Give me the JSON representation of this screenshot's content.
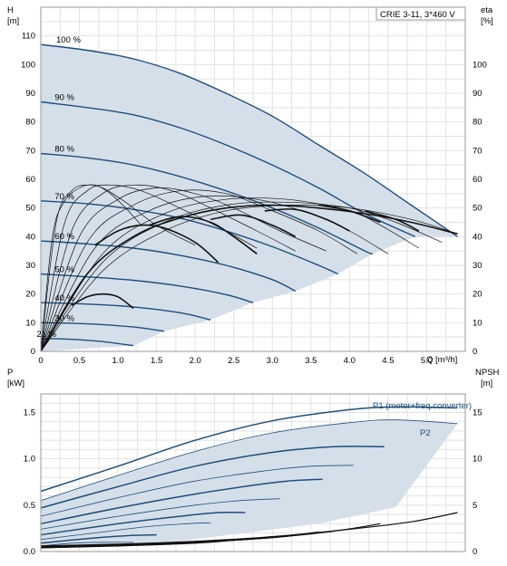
{
  "chart_data": [
    {
      "type": "line",
      "title": "CRIE 3-11, 3*460 V",
      "xlabel": "Q [m³/h]",
      "ylabel_left_symbol": "H",
      "ylabel_left_unit": "[m]",
      "ylabel_right_symbol": "eta",
      "ylabel_right_unit": "[%]",
      "xlim": [
        0,
        5.5
      ],
      "ylim": [
        0,
        120
      ],
      "ylim_right": [
        0,
        120
      ],
      "grid": true,
      "x_ticks": [
        "0",
        "0.5",
        "1.0",
        "1.5",
        "2.0",
        "2.5",
        "3.0",
        "3.5",
        "4.0",
        "4.5",
        "5.0"
      ],
      "y_ticks": [
        "0",
        "10",
        "20",
        "30",
        "40",
        "50",
        "60",
        "70",
        "80",
        "90",
        "100",
        "110"
      ],
      "y_ticks_right": [
        "0",
        "10",
        "20",
        "30",
        "40",
        "50",
        "60",
        "70",
        "80",
        "90",
        "100"
      ],
      "operating_range_color": "#d5dfea",
      "curve_color": "#1f4e79",
      "eta_color": "#111111",
      "head_curves": [
        {
          "label": "100 %",
          "x": [
            0,
            0.6,
            1.2,
            1.8,
            2.4,
            3.0,
            3.6,
            4.2,
            4.8,
            5.4
          ],
          "y": [
            107,
            105,
            102,
            97,
            90,
            82,
            72,
            62,
            51,
            40
          ]
        },
        {
          "label": "90 %",
          "x": [
            0,
            0.6,
            1.2,
            1.8,
            2.4,
            3.0,
            3.6,
            4.2,
            4.85
          ],
          "y": [
            87,
            85,
            82.5,
            78,
            72,
            65,
            57,
            48,
            40
          ]
        },
        {
          "label": "80 %",
          "x": [
            0,
            0.6,
            1.2,
            1.8,
            2.4,
            3.0,
            3.6,
            4.2,
            4.3
          ],
          "y": [
            69,
            67.5,
            65,
            61,
            56,
            50,
            43,
            35,
            34
          ]
        },
        {
          "label": "70 %",
          "x": [
            0,
            0.6,
            1.2,
            1.8,
            2.4,
            3.0,
            3.6,
            3.85
          ],
          "y": [
            52.5,
            51.5,
            49.5,
            46.5,
            42,
            36.5,
            30,
            27
          ]
        },
        {
          "label": "60 %",
          "x": [
            0,
            0.6,
            1.2,
            1.8,
            2.4,
            3.0,
            3.3
          ],
          "y": [
            38.5,
            37.5,
            36,
            33.5,
            30,
            25,
            21
          ]
        },
        {
          "label": "50 %",
          "x": [
            0,
            0.6,
            1.2,
            1.8,
            2.4,
            2.75
          ],
          "y": [
            27,
            26,
            24.8,
            22.8,
            19.8,
            17
          ]
        },
        {
          "label": "40 %",
          "x": [
            0,
            0.6,
            1.2,
            1.8,
            2.2
          ],
          "y": [
            17,
            16.5,
            15.5,
            13.5,
            11
          ]
        },
        {
          "label": "30 %",
          "x": [
            0,
            0.6,
            1.2,
            1.6
          ],
          "y": [
            10,
            9.6,
            8.5,
            7
          ]
        },
        {
          "label": "21 %",
          "x": [
            0,
            0.4,
            0.8,
            1.2
          ],
          "y": [
            4.5,
            4.2,
            3.4,
            2
          ]
        }
      ],
      "eta_curves": [
        {
          "x": [
            0,
            0.8,
            1.6,
            2.4,
            3.2,
            4.0,
            4.8,
            5.4
          ],
          "y": [
            0,
            28,
            42,
            49,
            51,
            50,
            46,
            41
          ]
        },
        {
          "x": [
            0,
            0.8,
            1.6,
            2.4,
            3.2,
            4.0,
            4.6,
            5.2
          ],
          "y": [
            0,
            31,
            45,
            51,
            52,
            50,
            45,
            38
          ]
        },
        {
          "x": [
            0,
            0.8,
            1.6,
            2.4,
            3.2,
            4.0,
            4.4,
            4.9
          ],
          "y": [
            0,
            34,
            48,
            53,
            53,
            49,
            44,
            36
          ]
        },
        {
          "x": [
            0,
            0.7,
            1.4,
            2.1,
            2.8,
            3.5,
            4.0,
            4.5
          ],
          "y": [
            0,
            36,
            49,
            54,
            53,
            48,
            42,
            34
          ]
        },
        {
          "x": [
            0,
            0.6,
            1.2,
            1.8,
            2.4,
            3.0,
            3.6,
            4.1
          ],
          "y": [
            0,
            38,
            51,
            56,
            55,
            49,
            42,
            34
          ]
        },
        {
          "x": [
            0,
            0.5,
            1.0,
            1.5,
            2.0,
            2.5,
            3.1,
            3.7
          ],
          "y": [
            0,
            40,
            53,
            57,
            55,
            50,
            42,
            35
          ]
        },
        {
          "x": [
            0,
            0.4,
            0.8,
            1.2,
            1.7,
            2.2,
            2.8,
            3.3
          ],
          "y": [
            0,
            42,
            55,
            58,
            56,
            50,
            42,
            35
          ]
        },
        {
          "x": [
            0,
            0.3,
            0.6,
            0.9,
            1.3,
            1.8,
            2.4,
            2.8
          ],
          "y": [
            0,
            44,
            56,
            58,
            56,
            50,
            42,
            36
          ]
        },
        {
          "x": [
            0,
            0.2,
            0.4,
            0.6,
            0.8,
            1.1,
            1.5,
            2.0
          ],
          "y": [
            0,
            45,
            56,
            58,
            57,
            52,
            44,
            37
          ]
        },
        {
          "x": [
            0,
            0.15,
            0.3,
            0.5,
            0.7,
            0.9,
            1.1,
            1.3
          ],
          "y": [
            0,
            40,
            52,
            57,
            58,
            55,
            50,
            44
          ]
        }
      ],
      "eta_bold_curves": [
        {
          "x": [
            0,
            0.6,
            1.2,
            1.8,
            2.4,
            3.0,
            3.6,
            4.2,
            4.8,
            5.4
          ],
          "y": [
            0,
            27,
            40,
            46.5,
            50,
            51,
            50,
            48,
            45,
            41
          ]
        },
        {
          "x": [
            0.7,
            1.0,
            1.3,
            1.6,
            2.0,
            2.3
          ],
          "y": [
            37,
            42,
            44,
            43,
            38,
            31
          ]
        },
        {
          "x": [
            1.4,
            1.8,
            2.2,
            2.5,
            2.8
          ],
          "y": [
            44,
            47,
            45,
            40,
            34
          ]
        },
        {
          "x": [
            2.2,
            2.6,
            3.0,
            3.3
          ],
          "y": [
            46,
            47.5,
            44,
            40
          ]
        },
        {
          "x": [
            2.9,
            3.3,
            3.7,
            4.0
          ],
          "y": [
            49,
            49.5,
            46,
            42
          ]
        },
        {
          "x": [
            3.6,
            4.0,
            4.4
          ],
          "y": [
            51,
            49,
            45
          ]
        },
        {
          "x": [
            4.2,
            4.6,
            4.9
          ],
          "y": [
            49,
            46,
            42
          ]
        },
        {
          "x": [
            0.4,
            0.6,
            0.8,
            1.0,
            1.2
          ],
          "y": [
            16,
            19,
            20,
            19,
            15
          ]
        }
      ]
    },
    {
      "type": "line",
      "xlabel": "",
      "ylabel_left_symbol": "P",
      "ylabel_left_unit": "[kW]",
      "ylabel_right_symbol": "NPSH",
      "ylabel_right_unit": "[m]",
      "xlim": [
        0,
        5.5
      ],
      "ylim": [
        0,
        1.7
      ],
      "ylim_right": [
        0,
        17
      ],
      "grid": true,
      "y_ticks": [
        "0.0",
        "0.5",
        "1.0",
        "1.5"
      ],
      "y_ticks_right": [
        "0",
        "5",
        "10",
        "15"
      ],
      "series_labels": [
        "P1 (motor+freq.converter)",
        "P2"
      ],
      "power_curves": [
        {
          "x": [
            0,
            1.0,
            2.0,
            3.0,
            4.0,
            4.6,
            5.4
          ],
          "y": [
            0.65,
            0.92,
            1.2,
            1.41,
            1.53,
            1.56,
            1.55
          ]
        },
        {
          "x": [
            0,
            1.0,
            2.0,
            3.0,
            4.0,
            4.6,
            5.4
          ],
          "y": [
            0.55,
            0.82,
            1.08,
            1.28,
            1.39,
            1.42,
            1.38
          ]
        },
        {
          "x": [
            0,
            1.0,
            2.0,
            3.0,
            3.8,
            4.45
          ],
          "y": [
            0.47,
            0.7,
            0.92,
            1.07,
            1.13,
            1.13
          ]
        },
        {
          "x": [
            0,
            1.0,
            2.0,
            3.0,
            3.5,
            4.05
          ],
          "y": [
            0.38,
            0.58,
            0.76,
            0.88,
            0.92,
            0.93
          ]
        },
        {
          "x": [
            0,
            1.0,
            2.0,
            2.8,
            3.2,
            3.65
          ],
          "y": [
            0.3,
            0.47,
            0.62,
            0.72,
            0.76,
            0.78
          ]
        },
        {
          "x": [
            0,
            1.0,
            2.0,
            2.6,
            3.1
          ],
          "y": [
            0.24,
            0.38,
            0.5,
            0.55,
            0.57
          ]
        },
        {
          "x": [
            0,
            1.0,
            1.8,
            2.3,
            2.65
          ],
          "y": [
            0.18,
            0.3,
            0.38,
            0.42,
            0.42
          ]
        },
        {
          "x": [
            0,
            0.8,
            1.4,
            1.9,
            2.2
          ],
          "y": [
            0.13,
            0.21,
            0.27,
            0.3,
            0.31
          ]
        },
        {
          "x": [
            0,
            0.6,
            1.1,
            1.5
          ],
          "y": [
            0.09,
            0.14,
            0.17,
            0.18
          ]
        },
        {
          "x": [
            0,
            0.4,
            0.8,
            1.2
          ],
          "y": [
            0.06,
            0.09,
            0.1,
            0.1
          ]
        }
      ],
      "npsh_curves": [
        {
          "x": [
            0,
            1.0,
            2.0,
            3.0,
            4.0,
            4.8,
            5.4
          ],
          "y": [
            0.6,
            0.8,
            1.1,
            1.6,
            2.4,
            3.2,
            4.2
          ]
        },
        {
          "x": [
            0,
            1.0,
            2.0,
            3.0,
            3.8,
            4.4
          ],
          "y": [
            0.5,
            0.7,
            1.0,
            1.5,
            2.2,
            3.0
          ]
        },
        {
          "x": [
            0,
            1.0,
            2.0,
            3.0,
            3.6
          ],
          "y": [
            0.5,
            0.7,
            1.0,
            1.5,
            2.1
          ]
        },
        {
          "x": [
            0,
            1.0,
            2.0,
            2.6,
            3.0
          ],
          "y": [
            0.4,
            0.6,
            0.9,
            1.3,
            1.6
          ]
        },
        {
          "x": [
            0,
            0.8,
            1.6,
            2.2
          ],
          "y": [
            0.4,
            0.6,
            0.8,
            1.1
          ]
        }
      ]
    }
  ]
}
